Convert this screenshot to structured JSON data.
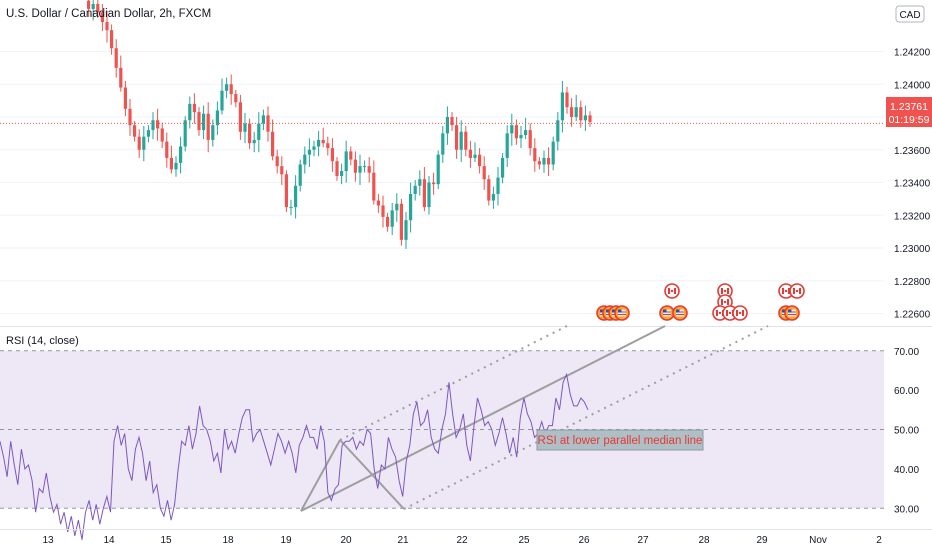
{
  "colors": {
    "up": "#26a69a",
    "down": "#ef5350",
    "price_line": "#ef5350",
    "rsi_line": "#7e57c2",
    "rsi_band": "#ede7f6",
    "median_line": "#9e9e9e",
    "annotation_text": "#e53935",
    "annotation_bg": "#b0bec5",
    "grid": "#f0f3fa",
    "axis_text": "#131722"
  },
  "chart_data": [
    {
      "type": "candlestick",
      "title": "U.S. Dollar / Canadian Dollar, 2h, FXCM",
      "currency_badge": "CAD",
      "y_ticks": [
        "1.24200",
        "1.24000",
        "1.23800",
        "1.23600",
        "1.23400",
        "1.23200",
        "1.23000",
        "1.22800",
        "1.22600"
      ],
      "ylim": [
        1.2253,
        1.2449
      ],
      "last_price": {
        "value": "1.23761",
        "countdown": "01:19:59"
      },
      "x_ticks": [
        "13",
        "14",
        "15",
        "18",
        "19",
        "20",
        "21",
        "22",
        "25",
        "26",
        "27",
        "28",
        "29",
        "Nov",
        "2"
      ],
      "closes": [
        1.2451,
        1.2446,
        1.2449,
        1.2444,
        1.2438,
        1.2433,
        1.2422,
        1.241,
        1.2398,
        1.2385,
        1.2375,
        1.2368,
        1.236,
        1.2368,
        1.2372,
        1.2378,
        1.2373,
        1.2365,
        1.2355,
        1.2348,
        1.2352,
        1.2362,
        1.2378,
        1.2388,
        1.2383,
        1.2372,
        1.2382,
        1.2366,
        1.2375,
        1.2384,
        1.2396,
        1.24,
        1.2394,
        1.2389,
        1.2371,
        1.2376,
        1.2364,
        1.2366,
        1.2376,
        1.2381,
        1.2371,
        1.2356,
        1.235,
        1.2345,
        1.2325,
        1.2325,
        1.2338,
        1.2351,
        1.2357,
        1.236,
        1.2362,
        1.2366,
        1.2364,
        1.2361,
        1.2353,
        1.2344,
        1.2347,
        1.2359,
        1.2354,
        1.2346,
        1.235,
        1.235,
        1.2346,
        1.2329,
        1.2326,
        1.2319,
        1.2313,
        1.2323,
        1.2327,
        1.2305,
        1.2317,
        1.2333,
        1.2338,
        1.2342,
        1.2325,
        1.234,
        1.2339,
        1.2357,
        1.237,
        1.238,
        1.2375,
        1.236,
        1.2371,
        1.236,
        1.2355,
        1.2357,
        1.235,
        1.2342,
        1.2329,
        1.2333,
        1.2343,
        1.2355,
        1.237,
        1.2375,
        1.2367,
        1.2369,
        1.2372,
        1.2361,
        1.2353,
        1.2351,
        1.2355,
        1.2351,
        1.2365,
        1.2378,
        1.2395,
        1.2386,
        1.238,
        1.2386,
        1.2378,
        1.2381,
        1.2377
      ]
    },
    {
      "type": "line",
      "title": "RSI (14, close)",
      "y_ticks": [
        "70.00",
        "60.00",
        "50.00",
        "40.00",
        "30.00"
      ],
      "ylim": [
        25,
        74
      ],
      "band": [
        30,
        70
      ],
      "dashed_levels": [
        70,
        50,
        30
      ],
      "values": [
        47,
        43,
        38,
        47,
        41,
        36,
        45,
        40,
        41,
        37,
        29,
        35,
        34,
        39,
        33,
        29,
        31,
        26,
        29,
        24,
        28,
        23,
        27,
        22,
        29,
        32,
        27,
        31,
        26,
        30,
        33,
        29,
        47,
        51,
        46,
        49,
        40,
        37,
        45,
        48,
        44,
        37,
        42,
        34,
        36,
        30,
        28,
        32,
        27,
        31,
        40,
        47,
        46,
        51,
        45,
        49,
        56,
        51,
        50,
        47,
        42,
        44,
        39,
        50,
        45,
        47,
        44,
        49,
        53,
        55,
        55,
        47,
        49,
        50,
        47,
        44,
        41,
        45,
        49,
        47,
        44,
        47,
        44,
        39,
        46,
        48,
        51,
        48,
        48,
        45,
        51,
        47,
        34,
        32,
        35,
        36,
        46,
        47,
        47,
        48,
        45,
        47,
        46,
        50,
        49,
        40,
        35,
        41,
        40,
        48,
        45,
        43,
        37,
        33,
        42,
        46,
        54,
        57,
        51,
        52,
        55,
        48,
        45,
        44,
        50,
        54,
        62,
        54,
        48,
        50,
        54,
        46,
        42,
        51,
        58,
        55,
        51,
        52,
        50,
        46,
        49,
        53,
        49,
        44,
        48,
        43,
        53,
        58,
        54,
        52,
        48,
        49,
        52,
        49,
        51,
        51,
        58,
        55,
        62,
        64,
        59,
        56,
        56,
        58,
        57,
        55
      ]
    }
  ],
  "annotation": {
    "text": "RSI at lower parallel median line"
  },
  "events": [
    {
      "flags": [
        "us",
        "us",
        "us",
        "us"
      ]
    },
    {
      "flags": [
        "ca",
        "us",
        "us"
      ]
    },
    {
      "flags": [
        "ca",
        "ca",
        "ca",
        "ca",
        "ca"
      ]
    },
    {
      "flags": [
        "ca",
        "ca",
        "us",
        "us"
      ]
    }
  ]
}
